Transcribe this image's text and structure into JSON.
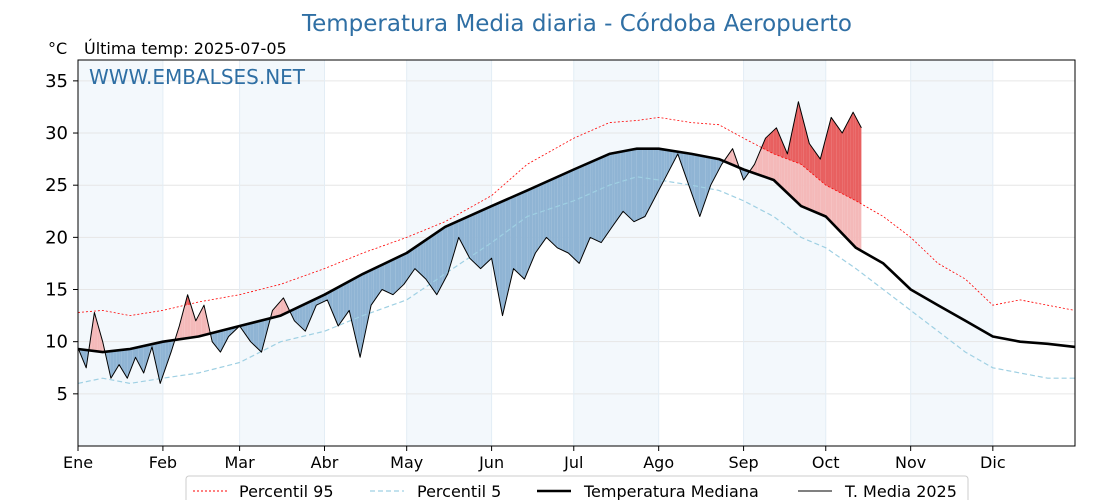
{
  "chart_data": {
    "type": "line",
    "title": "Temperatura Media diaria - Córdoba Aeropuerto",
    "unit_label": "°C",
    "last_temp_label": "Última temp: 2025-07-05",
    "watermark": "WWW.EMBALSES.NET",
    "ylim": [
      0,
      37
    ],
    "y_ticks": [
      5,
      10,
      15,
      20,
      25,
      30,
      35
    ],
    "xlim_days": [
      1,
      365
    ],
    "month_labels": [
      "Ene",
      "Feb",
      "Mar",
      "Abr",
      "May",
      "Jun",
      "Jul",
      "Ago",
      "Sep",
      "Oct",
      "Nov",
      "Dic"
    ],
    "month_start_days": [
      1,
      32,
      60,
      91,
      121,
      152,
      182,
      213,
      244,
      274,
      305,
      335
    ],
    "grid": true,
    "legend_position": "bottom-center",
    "series": [
      {
        "name": "Percentil 95",
        "color": "#ff0000",
        "style": "dotted",
        "points": [
          [
            1,
            12.8
          ],
          [
            10,
            13.0
          ],
          [
            20,
            12.5
          ],
          [
            32,
            13.0
          ],
          [
            45,
            13.8
          ],
          [
            60,
            14.5
          ],
          [
            75,
            15.5
          ],
          [
            91,
            17.0
          ],
          [
            105,
            18.5
          ],
          [
            121,
            20.0
          ],
          [
            135,
            21.5
          ],
          [
            152,
            24.0
          ],
          [
            165,
            27.0
          ],
          [
            182,
            29.5
          ],
          [
            195,
            31.0
          ],
          [
            205,
            31.2
          ],
          [
            213,
            31.5
          ],
          [
            225,
            31.0
          ],
          [
            235,
            30.8
          ],
          [
            244,
            29.5
          ],
          [
            255,
            28.0
          ],
          [
            265,
            27.0
          ],
          [
            274,
            25.0
          ],
          [
            285,
            23.5
          ],
          [
            295,
            22.0
          ],
          [
            305,
            20.0
          ],
          [
            315,
            17.5
          ],
          [
            325,
            16.0
          ],
          [
            335,
            13.5
          ],
          [
            345,
            14.0
          ],
          [
            355,
            13.5
          ],
          [
            365,
            13.0
          ]
        ]
      },
      {
        "name": "Percentil 5",
        "color": "#9fd0e3",
        "style": "dashed",
        "points": [
          [
            1,
            6.0
          ],
          [
            10,
            6.5
          ],
          [
            20,
            6.0
          ],
          [
            32,
            6.5
          ],
          [
            45,
            7.0
          ],
          [
            60,
            8.0
          ],
          [
            75,
            10.0
          ],
          [
            91,
            11.0
          ],
          [
            105,
            12.5
          ],
          [
            121,
            14.0
          ],
          [
            135,
            16.5
          ],
          [
            152,
            19.5
          ],
          [
            165,
            22.0
          ],
          [
            182,
            23.5
          ],
          [
            195,
            25.0
          ],
          [
            205,
            25.8
          ],
          [
            213,
            25.5
          ],
          [
            225,
            25.0
          ],
          [
            235,
            24.5
          ],
          [
            244,
            23.5
          ],
          [
            255,
            22.0
          ],
          [
            265,
            20.0
          ],
          [
            274,
            19.0
          ],
          [
            285,
            17.0
          ],
          [
            295,
            15.0
          ],
          [
            305,
            13.0
          ],
          [
            315,
            11.0
          ],
          [
            325,
            9.0
          ],
          [
            335,
            7.5
          ],
          [
            345,
            7.0
          ],
          [
            355,
            6.5
          ],
          [
            365,
            6.5
          ]
        ]
      },
      {
        "name": "Temperatura Mediana",
        "color": "#000000",
        "style": "thick",
        "points": [
          [
            1,
            9.3
          ],
          [
            10,
            9.0
          ],
          [
            20,
            9.3
          ],
          [
            32,
            10.0
          ],
          [
            45,
            10.5
          ],
          [
            60,
            11.5
          ],
          [
            75,
            12.5
          ],
          [
            91,
            14.5
          ],
          [
            105,
            16.5
          ],
          [
            121,
            18.5
          ],
          [
            135,
            21.0
          ],
          [
            152,
            23.0
          ],
          [
            165,
            24.5
          ],
          [
            182,
            26.5
          ],
          [
            195,
            28.0
          ],
          [
            205,
            28.5
          ],
          [
            213,
            28.5
          ],
          [
            225,
            28.0
          ],
          [
            235,
            27.5
          ],
          [
            244,
            26.5
          ],
          [
            255,
            25.5
          ],
          [
            265,
            23.0
          ],
          [
            274,
            22.0
          ],
          [
            285,
            19.0
          ],
          [
            295,
            17.5
          ],
          [
            305,
            15.0
          ],
          [
            315,
            13.5
          ],
          [
            325,
            12.0
          ],
          [
            335,
            10.5
          ],
          [
            345,
            10.0
          ],
          [
            355,
            9.8
          ],
          [
            365,
            9.5
          ]
        ]
      },
      {
        "name": "T. Media 2025",
        "color": "#000000",
        "style": "thin",
        "points": [
          [
            1,
            9.4
          ],
          [
            4,
            7.5
          ],
          [
            7,
            12.8
          ],
          [
            10,
            10.0
          ],
          [
            13,
            6.5
          ],
          [
            16,
            7.8
          ],
          [
            19,
            6.5
          ],
          [
            22,
            8.5
          ],
          [
            25,
            7.0
          ],
          [
            28,
            9.5
          ],
          [
            31,
            6.0
          ],
          [
            35,
            9.0
          ],
          [
            38,
            11.5
          ],
          [
            41,
            14.5
          ],
          [
            44,
            12.0
          ],
          [
            47,
            13.5
          ],
          [
            50,
            10.0
          ],
          [
            53,
            9.0
          ],
          [
            56,
            10.5
          ],
          [
            60,
            11.5
          ],
          [
            64,
            10.0
          ],
          [
            68,
            9.0
          ],
          [
            72,
            13.0
          ],
          [
            76,
            14.2
          ],
          [
            80,
            12.0
          ],
          [
            84,
            11.0
          ],
          [
            88,
            13.5
          ],
          [
            92,
            14.0
          ],
          [
            96,
            11.5
          ],
          [
            100,
            13.0
          ],
          [
            104,
            8.5
          ],
          [
            108,
            13.5
          ],
          [
            112,
            15.0
          ],
          [
            116,
            14.5
          ],
          [
            120,
            15.5
          ],
          [
            124,
            17.0
          ],
          [
            128,
            16.0
          ],
          [
            132,
            14.5
          ],
          [
            136,
            16.5
          ],
          [
            140,
            20.0
          ],
          [
            144,
            18.0
          ],
          [
            148,
            17.0
          ],
          [
            152,
            18.0
          ],
          [
            156,
            12.5
          ],
          [
            160,
            17.0
          ],
          [
            164,
            16.0
          ],
          [
            168,
            18.5
          ],
          [
            172,
            20.0
          ],
          [
            176,
            19.0
          ],
          [
            180,
            18.5
          ],
          [
            184,
            17.5
          ],
          [
            188,
            20.0
          ],
          [
            192,
            19.5
          ],
          [
            196,
            21.0
          ],
          [
            200,
            22.5
          ],
          [
            204,
            21.5
          ],
          [
            208,
            22.0
          ],
          [
            212,
            24.0
          ],
          [
            216,
            26.0
          ],
          [
            220,
            28.0
          ],
          [
            224,
            25.0
          ],
          [
            228,
            22.0
          ],
          [
            232,
            25.0
          ],
          [
            236,
            27.0
          ],
          [
            240,
            28.5
          ],
          [
            244,
            25.5
          ],
          [
            248,
            27.0
          ],
          [
            252,
            29.5
          ],
          [
            256,
            30.5
          ],
          [
            260,
            28.0
          ],
          [
            264,
            33.0
          ],
          [
            268,
            29.0
          ],
          [
            272,
            27.5
          ],
          [
            276,
            31.5
          ],
          [
            280,
            30.0
          ],
          [
            284,
            32.0
          ],
          [
            287,
            30.5
          ]
        ]
      }
    ]
  }
}
